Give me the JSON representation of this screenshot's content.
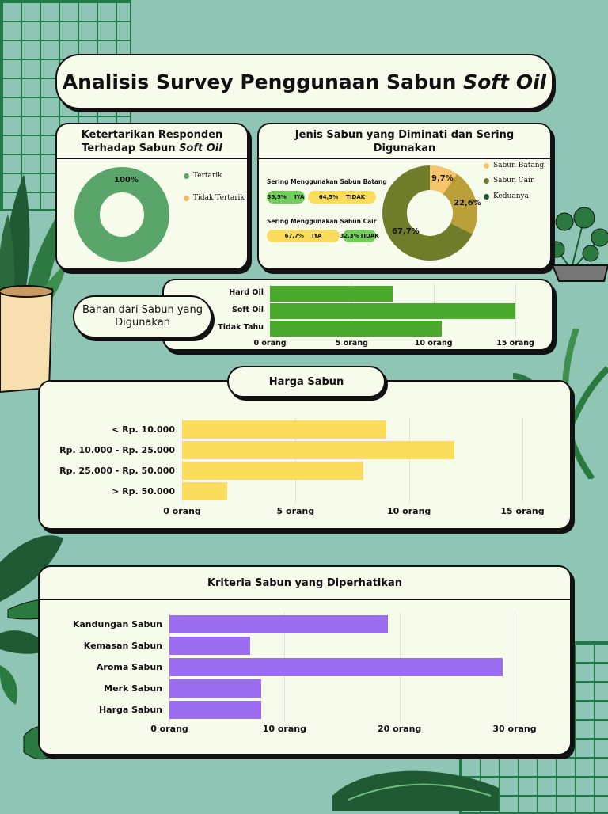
{
  "title": "Analisis Survey Penggunaan Sabun ",
  "title_italic": "Soft Oil",
  "panel1": {
    "title": "Ketertarikan Responden Terhadap Sabun ",
    "title_italic": "Soft Oil",
    "chart_data": {
      "type": "pie",
      "categories": [
        "Tertarik",
        "Tidak Tertarik"
      ],
      "values": [
        100,
        0
      ],
      "data_labels": [
        "100%"
      ],
      "colors": [
        "#5aa66a",
        "#f4b860"
      ],
      "legend": "right"
    }
  },
  "panel2": {
    "title": "Jenis Sabun yang Diminati dan Sering Digunakan",
    "batang": {
      "label": "Sering Menggunakan Sabun Batang",
      "iya_value": "35,5%",
      "iya_label": "IYA",
      "tidak_value": "64,5%",
      "tidak_label": "TIDAK"
    },
    "cair": {
      "label": "Sering Menggunakan Sabun Cair",
      "iya_value": "67,7%",
      "iya_label": "IYA",
      "tidak_value": "32,3%",
      "tidak_label": "TIDAK"
    },
    "chart_data": {
      "type": "pie",
      "categories": [
        "Sabun Batang",
        "Sabun Cair",
        "Keduanya"
      ],
      "values": [
        9.7,
        22.6,
        67.7
      ],
      "data_labels": [
        "9,7%",
        "22,6%",
        "67,7%"
      ],
      "colors": [
        "#f6c56b",
        "#bba03a",
        "#6f7d2b"
      ],
      "legend": "right"
    }
  },
  "bahan": {
    "title": "Bahan dari Sabun yang Digunakan",
    "chart_data": {
      "type": "bar",
      "orientation": "horizontal",
      "categories": [
        "Hard Oil",
        "Soft Oil",
        "Tidak Tahu"
      ],
      "values": [
        7.5,
        15,
        10.5
      ],
      "xticks": [
        "0 orang",
        "5 orang",
        "10 orang",
        "15 orang"
      ],
      "xlim": [
        0,
        15
      ],
      "color": "#4aa82c",
      "grid": true
    }
  },
  "harga": {
    "title": "Harga Sabun",
    "chart_data": {
      "type": "bar",
      "orientation": "horizontal",
      "categories": [
        "< Rp. 10.000",
        "Rp. 10.000 - Rp. 25.000",
        "Rp. 25.000 - Rp. 50.000",
        "> Rp. 50.000"
      ],
      "values": [
        9,
        12,
        8,
        2
      ],
      "xticks": [
        "0 orang",
        "5 orang",
        "10 orang",
        "15 orang"
      ],
      "xlim": [
        0,
        15
      ],
      "color": "#fbdc5c",
      "grid": true
    }
  },
  "kriteria": {
    "title": "Kriteria Sabun yang Diperhatikan",
    "chart_data": {
      "type": "bar",
      "orientation": "horizontal",
      "categories": [
        "Kandungan Sabun",
        "Kemasan Sabun",
        "Aroma Sabun",
        "Merk Sabun",
        "Harga Sabun"
      ],
      "values": [
        19,
        7,
        29,
        8,
        8
      ],
      "xticks": [
        "0 orang",
        "10 orang",
        "20 orang",
        "30 orang"
      ],
      "xlim": [
        0,
        30
      ],
      "color": "#9b6ef0",
      "grid": true
    }
  }
}
